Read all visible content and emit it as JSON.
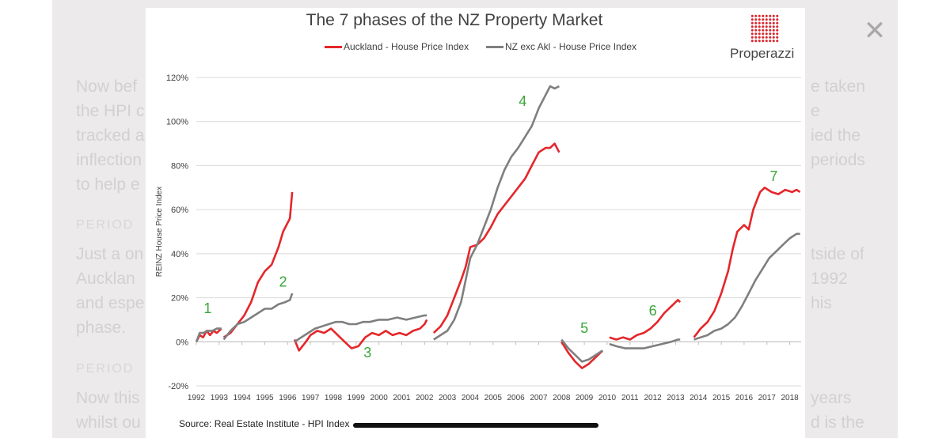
{
  "background": {
    "lines": [
      {
        "left": "Now bef",
        "right": "e taken"
      },
      {
        "left": "the HPI c",
        "right": "e"
      },
      {
        "left": "tracked a",
        "right": "ied the"
      },
      {
        "left": "inflection",
        "right": "periods"
      },
      {
        "left": "to help e",
        "right": ""
      }
    ],
    "period_label_1": "PERIOD",
    "para2": [
      {
        "left": "Just a on",
        "right": "tside of"
      },
      {
        "left": "Aucklan",
        "right": "1992"
      },
      {
        "left": "and espe",
        "right": "his"
      },
      {
        "left": "phase.",
        "right": ""
      }
    ],
    "period_label_2": "PERIOD",
    "para3": [
      {
        "left": "Now this",
        "right": "years"
      },
      {
        "left": "whilst ou",
        "right": "d is the"
      }
    ],
    "caption_cut": "Source: Real Estate Institute - HPI Index"
  },
  "close_icon": "✕",
  "logo_text": "Properazzi",
  "source_text": "Source: Real Estate Institute - HPI Index",
  "chart_data": {
    "type": "line",
    "title": "The 7 phases of the NZ Property Market",
    "ylabel": "REINZ House Price Index",
    "xlabel": "",
    "ylim": [
      -20,
      120
    ],
    "xlim": [
      1992,
      2018.5
    ],
    "yticks": [
      -20,
      0,
      20,
      40,
      60,
      80,
      100,
      120
    ],
    "ytick_labels": [
      "-20%",
      "0%",
      "20%",
      "40%",
      "60%",
      "80%",
      "100%",
      "120%"
    ],
    "xticks": [
      1992,
      1993,
      1994,
      1995,
      1996,
      1997,
      1998,
      1999,
      2000,
      2001,
      2002,
      2003,
      2004,
      2005,
      2006,
      2007,
      2008,
      2009,
      2010,
      2011,
      2012,
      2013,
      2014,
      2015,
      2016,
      2017,
      2018
    ],
    "grid": "horizontal",
    "legend_position": "top",
    "series": [
      {
        "name": "Auckland - House Price Index",
        "color": "#e5262a",
        "segments": [
          [
            [
              1992.0,
              0
            ],
            [
              1992.15,
              3
            ],
            [
              1992.3,
              2
            ],
            [
              1992.45,
              5
            ],
            [
              1992.6,
              3
            ],
            [
              1992.75,
              5
            ],
            [
              1992.9,
              4
            ],
            [
              1993.1,
              6
            ]
          ],
          [
            [
              1993.2,
              2
            ],
            [
              1993.5,
              4
            ],
            [
              1993.8,
              8
            ],
            [
              1994.1,
              12
            ],
            [
              1994.4,
              18
            ],
            [
              1994.7,
              27
            ],
            [
              1995.0,
              32
            ],
            [
              1995.3,
              35
            ],
            [
              1995.6,
              43
            ],
            [
              1995.8,
              50
            ],
            [
              1996.0,
              54
            ],
            [
              1996.1,
              56
            ],
            [
              1996.2,
              68
            ]
          ],
          [
            [
              1996.3,
              1
            ],
            [
              1996.5,
              -4
            ],
            [
              1996.8,
              0
            ],
            [
              1997.0,
              3
            ],
            [
              1997.3,
              5
            ],
            [
              1997.6,
              4
            ],
            [
              1997.9,
              6
            ],
            [
              1998.2,
              3
            ],
            [
              1998.5,
              0
            ],
            [
              1998.8,
              -3
            ],
            [
              1999.1,
              -2
            ],
            [
              1999.4,
              2
            ],
            [
              1999.7,
              4
            ],
            [
              2000.0,
              3
            ],
            [
              2000.3,
              5
            ],
            [
              2000.6,
              3
            ],
            [
              2000.9,
              4
            ],
            [
              2001.2,
              3
            ],
            [
              2001.5,
              5
            ],
            [
              2001.8,
              6
            ],
            [
              2002.0,
              8
            ],
            [
              2002.1,
              10
            ]
          ],
          [
            [
              2002.4,
              4
            ],
            [
              2002.7,
              7
            ],
            [
              2003.0,
              12
            ],
            [
              2003.3,
              20
            ],
            [
              2003.6,
              28
            ],
            [
              2003.8,
              34
            ],
            [
              2004.0,
              43
            ],
            [
              2004.3,
              44
            ],
            [
              2004.6,
              47
            ],
            [
              2004.9,
              52
            ],
            [
              2005.2,
              58
            ],
            [
              2005.5,
              62
            ],
            [
              2005.8,
              66
            ],
            [
              2006.1,
              70
            ],
            [
              2006.4,
              74
            ],
            [
              2006.7,
              80
            ],
            [
              2007.0,
              86
            ],
            [
              2007.3,
              88
            ],
            [
              2007.5,
              88
            ],
            [
              2007.7,
              90
            ],
            [
              2007.9,
              86
            ]
          ],
          [
            [
              2008.0,
              0
            ],
            [
              2008.3,
              -5
            ],
            [
              2008.6,
              -9
            ],
            [
              2008.9,
              -12
            ],
            [
              2009.2,
              -10
            ],
            [
              2009.5,
              -7
            ],
            [
              2009.8,
              -4
            ]
          ],
          [
            [
              2010.1,
              2
            ],
            [
              2010.4,
              1
            ],
            [
              2010.7,
              2
            ],
            [
              2011.0,
              1
            ],
            [
              2011.3,
              3
            ],
            [
              2011.6,
              4
            ],
            [
              2011.9,
              6
            ],
            [
              2012.2,
              9
            ],
            [
              2012.5,
              13
            ],
            [
              2012.8,
              16
            ],
            [
              2013.1,
              19
            ],
            [
              2013.2,
              18
            ]
          ],
          [
            [
              2013.8,
              2
            ],
            [
              2014.1,
              6
            ],
            [
              2014.4,
              9
            ],
            [
              2014.7,
              14
            ],
            [
              2015.0,
              22
            ],
            [
              2015.3,
              32
            ],
            [
              2015.5,
              42
            ],
            [
              2015.7,
              50
            ],
            [
              2016.0,
              53
            ],
            [
              2016.2,
              51
            ],
            [
              2016.4,
              60
            ],
            [
              2016.7,
              68
            ],
            [
              2016.9,
              70
            ],
            [
              2017.2,
              68
            ],
            [
              2017.5,
              67
            ],
            [
              2017.8,
              69
            ],
            [
              2018.1,
              68
            ],
            [
              2018.3,
              69
            ],
            [
              2018.45,
              68
            ]
          ]
        ]
      },
      {
        "name": "NZ exc Akl - House Price Index",
        "color": "#7f7f7f",
        "segments": [
          [
            [
              1992.0,
              0
            ],
            [
              1992.15,
              4
            ],
            [
              1992.3,
              4
            ],
            [
              1992.5,
              5
            ],
            [
              1992.7,
              5
            ],
            [
              1992.9,
              6
            ],
            [
              1993.1,
              6
            ]
          ],
          [
            [
              1993.2,
              1
            ],
            [
              1993.5,
              5
            ],
            [
              1993.8,
              8
            ],
            [
              1994.1,
              9
            ],
            [
              1994.4,
              11
            ],
            [
              1994.7,
              13
            ],
            [
              1995.0,
              15
            ],
            [
              1995.3,
              15
            ],
            [
              1995.6,
              17
            ],
            [
              1995.9,
              18
            ],
            [
              1996.1,
              19
            ],
            [
              1996.2,
              22
            ]
          ],
          [
            [
              1996.3,
              0
            ],
            [
              1996.6,
              2
            ],
            [
              1996.9,
              4
            ],
            [
              1997.2,
              6
            ],
            [
              1997.5,
              7
            ],
            [
              1997.8,
              8
            ],
            [
              1998.1,
              9
            ],
            [
              1998.4,
              9
            ],
            [
              1998.7,
              8
            ],
            [
              1999.0,
              8
            ],
            [
              1999.3,
              9
            ],
            [
              1999.6,
              9
            ],
            [
              2000.0,
              10
            ],
            [
              2000.4,
              10
            ],
            [
              2000.8,
              11
            ],
            [
              2001.2,
              10
            ],
            [
              2001.6,
              11
            ],
            [
              2002.0,
              12
            ],
            [
              2002.1,
              12
            ]
          ],
          [
            [
              2002.4,
              1
            ],
            [
              2002.7,
              3
            ],
            [
              2003.0,
              5
            ],
            [
              2003.3,
              10
            ],
            [
              2003.6,
              18
            ],
            [
              2003.8,
              28
            ],
            [
              2004.0,
              38
            ],
            [
              2004.3,
              44
            ],
            [
              2004.6,
              52
            ],
            [
              2004.9,
              60
            ],
            [
              2005.2,
              70
            ],
            [
              2005.5,
              78
            ],
            [
              2005.8,
              84
            ],
            [
              2006.1,
              88
            ],
            [
              2006.4,
              93
            ],
            [
              2006.7,
              98
            ],
            [
              2007.0,
              106
            ],
            [
              2007.3,
              112
            ],
            [
              2007.5,
              116
            ],
            [
              2007.7,
              115
            ],
            [
              2007.9,
              116
            ]
          ],
          [
            [
              2008.0,
              1
            ],
            [
              2008.3,
              -3
            ],
            [
              2008.6,
              -6
            ],
            [
              2008.9,
              -9
            ],
            [
              2009.2,
              -8
            ],
            [
              2009.5,
              -6
            ],
            [
              2009.8,
              -4
            ]
          ],
          [
            [
              2010.1,
              -1
            ],
            [
              2010.4,
              -2
            ],
            [
              2010.8,
              -3
            ],
            [
              2011.2,
              -3
            ],
            [
              2011.6,
              -3
            ],
            [
              2012.0,
              -2
            ],
            [
              2012.4,
              -1
            ],
            [
              2012.8,
              0
            ],
            [
              2013.1,
              1
            ],
            [
              2013.2,
              1
            ]
          ],
          [
            [
              2013.8,
              1
            ],
            [
              2014.1,
              2
            ],
            [
              2014.4,
              3
            ],
            [
              2014.7,
              5
            ],
            [
              2015.0,
              6
            ],
            [
              2015.3,
              8
            ],
            [
              2015.6,
              11
            ],
            [
              2015.9,
              16
            ],
            [
              2016.2,
              22
            ],
            [
              2016.5,
              28
            ],
            [
              2016.8,
              33
            ],
            [
              2017.1,
              38
            ],
            [
              2017.4,
              41
            ],
            [
              2017.7,
              44
            ],
            [
              2018.0,
              47
            ],
            [
              2018.3,
              49
            ],
            [
              2018.45,
              49
            ]
          ]
        ]
      }
    ],
    "annotations": [
      {
        "text": "1",
        "x": 1992.5,
        "y": 13
      },
      {
        "text": "2",
        "x": 1995.8,
        "y": 25
      },
      {
        "text": "3",
        "x": 1999.5,
        "y": -7
      },
      {
        "text": "4",
        "x": 2006.3,
        "y": 107
      },
      {
        "text": "5",
        "x": 2009.0,
        "y": 4
      },
      {
        "text": "6",
        "x": 2012.0,
        "y": 12
      },
      {
        "text": "7",
        "x": 2017.3,
        "y": 73
      }
    ],
    "annotation_color": "#3aa63a"
  }
}
